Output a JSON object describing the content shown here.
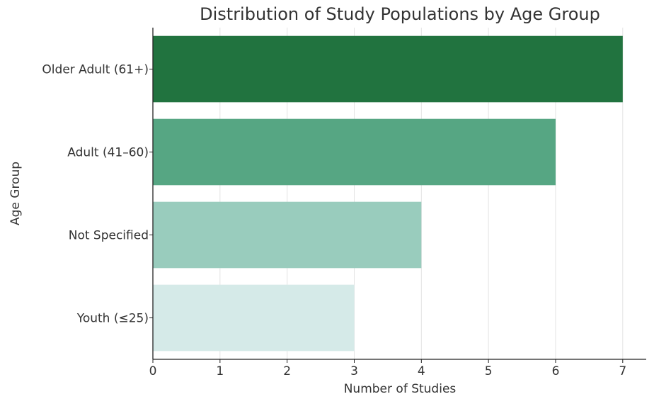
{
  "chart_data": {
    "type": "bar",
    "orientation": "horizontal",
    "title": "Distribution of Study Populations by Age Group",
    "xlabel": "Number of Studies",
    "ylabel": "Age Group",
    "categories": [
      "Older Adult (61+)",
      "Adult (41–60)",
      "Not Specified",
      "Youth (≤25)"
    ],
    "values": [
      7,
      6,
      4,
      3
    ],
    "colors": [
      "#21733f",
      "#56a683",
      "#99ccbd",
      "#d5eae8"
    ],
    "xlim": [
      0,
      7.35
    ],
    "xticks": [
      0,
      1,
      2,
      3,
      4,
      5,
      6,
      7
    ],
    "grid": "vertical",
    "legend": "none"
  }
}
